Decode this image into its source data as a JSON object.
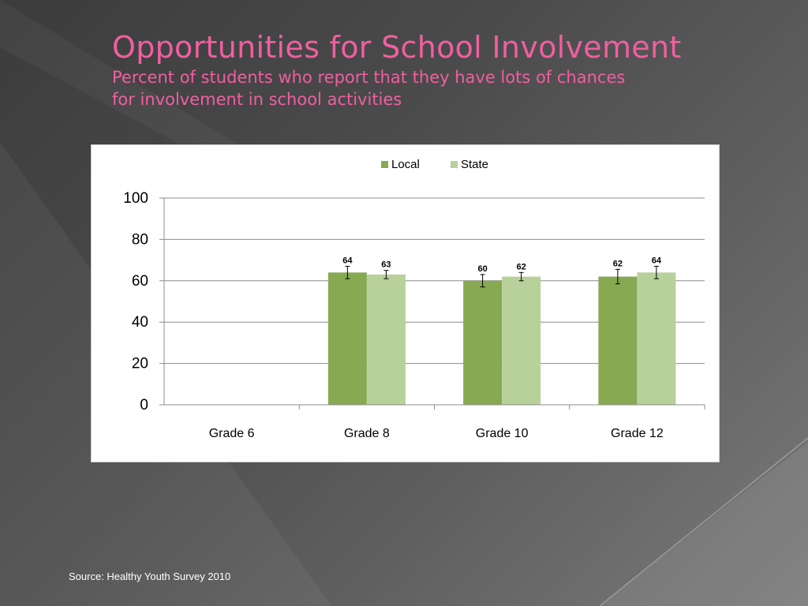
{
  "slide": {
    "title": "Opportunities for School Involvement",
    "subtitle_line1": "Percent of students who report that they have lots of chances",
    "subtitle_line2": "for involvement in school activities",
    "source": "Source: Healthy Youth Survey 2010"
  },
  "colors": {
    "title": "#f05fa0",
    "local": "#87a952",
    "state": "#b8d09a",
    "background": "#4a4a4a"
  },
  "chart_data": {
    "type": "bar",
    "categories": [
      "Grade 6",
      "Grade 8",
      "Grade 10",
      "Grade 12"
    ],
    "series": [
      {
        "name": "Local",
        "values": [
          null,
          64,
          60,
          62
        ],
        "error": [
          null,
          3,
          3,
          3.5
        ]
      },
      {
        "name": "State",
        "values": [
          null,
          63,
          62,
          64
        ],
        "error": [
          null,
          2,
          2,
          3
        ]
      }
    ],
    "data_labels": {
      "Local": [
        "",
        "64",
        "60",
        "62"
      ],
      "State": [
        "",
        "63",
        "62",
        "64"
      ]
    },
    "ylim": [
      0,
      100
    ],
    "yticks": [
      0,
      20,
      40,
      60,
      80,
      100
    ],
    "grid": true,
    "legend_position": "top-center"
  }
}
